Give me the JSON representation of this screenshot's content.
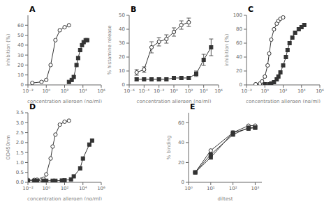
{
  "chart_data": [
    {
      "type": "line",
      "title": "A",
      "xlabel": "concentration allergen (ng/ml)",
      "ylabel": "inhibition (%)",
      "log": "x",
      "xlim": [
        0.01,
        1000000
      ],
      "xticks": [
        {
          "value": 0.01,
          "label": "10⁻²"
        },
        {
          "value": 1,
          "label": "10⁰"
        },
        {
          "value": 100,
          "label": "10²"
        },
        {
          "value": 10000,
          "label": "10⁴"
        },
        {
          "value": 1000000,
          "label": "10⁶"
        }
      ],
      "ylim": [
        0,
        70
      ],
      "yticks": [
        0,
        10,
        20,
        30,
        40,
        50,
        60
      ],
      "series": [
        {
          "color": "#333333",
          "marker": "open_circle",
          "x": [
            0.03,
            0.3,
            1,
            3,
            10,
            30,
            100,
            300
          ],
          "values": [
            2,
            3,
            5,
            20,
            45,
            55,
            58,
            60
          ]
        },
        {
          "color": "#333333",
          "marker": "square",
          "x": [
            300,
            600,
            1000,
            2000,
            3000,
            5000,
            8000,
            12000,
            20000,
            30000
          ],
          "values": [
            3,
            5,
            8,
            20,
            27,
            35,
            40,
            43,
            45,
            45
          ]
        }
      ]
    },
    {
      "type": "line",
      "title": "B",
      "xlabel": "concentration allergen (ng/ml)",
      "ylabel": "% histamine release",
      "log": "x",
      "xlim": [
        1e-06,
        1000000
      ],
      "xticks": [
        {
          "value": 1e-06,
          "label": "10⁻⁶"
        },
        {
          "value": 0.0001,
          "label": "10⁻⁴"
        },
        {
          "value": 0.01,
          "label": "10⁻²"
        },
        {
          "value": 1,
          "label": "10⁰"
        },
        {
          "value": 100,
          "label": "10²"
        },
        {
          "value": 10000,
          "label": "10⁴"
        },
        {
          "value": 1000000,
          "label": "10⁶"
        }
      ],
      "ylim": [
        0,
        50
      ],
      "yticks": [
        0,
        10,
        20,
        30,
        40,
        50
      ],
      "series": [
        {
          "color": "#333333",
          "marker": "open_circle",
          "x": [
            1e-05,
            0.0001,
            0.001,
            0.01,
            0.1,
            1,
            10,
            100
          ],
          "values": [
            9,
            11,
            27,
            31,
            33,
            38,
            43,
            45
          ],
          "errors": [
            2,
            2,
            4,
            3,
            3,
            3,
            3,
            3
          ]
        },
        {
          "color": "#333333",
          "marker": "square",
          "x": [
            1e-05,
            0.0001,
            0.001,
            0.01,
            0.1,
            1,
            10,
            100,
            1000,
            10000,
            100000
          ],
          "values": [
            4,
            4,
            4,
            4,
            4,
            5,
            5,
            5,
            8,
            18,
            27
          ],
          "errors": [
            1,
            1,
            1,
            1,
            1,
            1,
            1,
            1,
            2,
            4,
            6
          ]
        }
      ]
    },
    {
      "type": "line",
      "title": "C",
      "xlabel": "concentration allergen (ng/ml)",
      "ylabel": "inhibition (%)",
      "log": "x",
      "xlim": [
        0.01,
        1000000
      ],
      "xticks": [
        {
          "value": 0.01,
          "label": "10⁻²"
        },
        {
          "value": 1,
          "label": "10⁰"
        },
        {
          "value": 100,
          "label": "10²"
        },
        {
          "value": 10000,
          "label": "10⁴"
        },
        {
          "value": 1000000,
          "label": "10⁶"
        }
      ],
      "ylim": [
        0,
        100
      ],
      "yticks": [
        0,
        20,
        40,
        60,
        80,
        100
      ],
      "series": [
        {
          "color": "#333333",
          "marker": "open_circle",
          "x": [
            0.1,
            0.3,
            0.5,
            1,
            2,
            3,
            5,
            10,
            20,
            30,
            50,
            100
          ],
          "values": [
            1,
            2,
            5,
            12,
            28,
            45,
            65,
            80,
            88,
            92,
            95,
            97
          ]
        },
        {
          "color": "#333333",
          "marker": "square",
          "x": [
            1,
            3,
            5,
            10,
            20,
            30,
            50,
            100,
            200,
            300,
            500,
            1000,
            2000,
            5000,
            10000,
            20000
          ],
          "values": [
            1,
            1,
            2,
            4,
            8,
            12,
            18,
            28,
            40,
            50,
            60,
            68,
            75,
            80,
            83,
            86
          ]
        }
      ]
    },
    {
      "type": "line",
      "title": "D",
      "xlabel": "concentration allergen (ng/ml)",
      "ylabel": "OD450nm",
      "log": "x",
      "xlim": [
        0.01,
        1000000
      ],
      "xticks": [
        {
          "value": 0.01,
          "label": "10⁻²"
        },
        {
          "value": 1,
          "label": "10⁰"
        },
        {
          "value": 100,
          "label": "10²"
        },
        {
          "value": 10000,
          "label": "10⁴"
        },
        {
          "value": 1000000,
          "label": "10⁶"
        }
      ],
      "ylim": [
        0,
        3.5
      ],
      "yticks": [
        {
          "value": 0,
          "label": "0.0"
        },
        0.5,
        {
          "value": 1.0,
          "label": "1.0"
        },
        1.5,
        {
          "value": 2.0,
          "label": "2.0"
        },
        2.5,
        {
          "value": 3.0,
          "label": "3.0"
        },
        3.5
      ],
      "series": [
        {
          "color": "#333333",
          "marker": "open_circle",
          "x": [
            0.01,
            0.05,
            0.1,
            0.3,
            0.5,
            1,
            3,
            5,
            10,
            30,
            100,
            300
          ],
          "values": [
            0.12,
            0.12,
            0.13,
            0.14,
            0.18,
            0.4,
            1.2,
            1.8,
            2.4,
            2.9,
            3.05,
            3.1
          ]
        },
        {
          "color": "#333333",
          "marker": "square",
          "x": [
            0.01,
            0.05,
            0.1,
            0.5,
            1,
            5,
            10,
            50,
            100,
            500,
            1000,
            5000,
            10000,
            50000,
            100000
          ],
          "values": [
            0.08,
            0.08,
            0.08,
            0.08,
            0.08,
            0.08,
            0.08,
            0.09,
            0.1,
            0.15,
            0.3,
            0.7,
            1.2,
            1.9,
            2.1
          ]
        }
      ]
    },
    {
      "type": "line",
      "title": "E",
      "xlabel": "diltest",
      "ylabel": "% binding",
      "log": "x",
      "xlim": [
        1,
        2000
      ],
      "xticks": [
        {
          "value": 1,
          "label": "10⁰"
        },
        {
          "value": 10,
          "label": "10¹"
        },
        {
          "value": 100,
          "label": "10²"
        },
        {
          "value": 1000,
          "label": "10³"
        }
      ],
      "ylim": [
        0,
        70
      ],
      "yticks": [
        0,
        20,
        40,
        60
      ],
      "series": [
        {
          "color": "#333333",
          "marker": "open_circle",
          "x": [
            2,
            10,
            100,
            500,
            1000
          ],
          "values": [
            10,
            32,
            50,
            57,
            57
          ]
        },
        {
          "color": "#333333",
          "marker": "square",
          "x": [
            2,
            10,
            100,
            500,
            1000
          ],
          "values": [
            10,
            25,
            50,
            54,
            55
          ]
        },
        {
          "color": "#333333",
          "marker": "square",
          "x": [
            2,
            10,
            100,
            500,
            1000
          ],
          "values": [
            10,
            28,
            48,
            55,
            55
          ]
        }
      ]
    }
  ]
}
